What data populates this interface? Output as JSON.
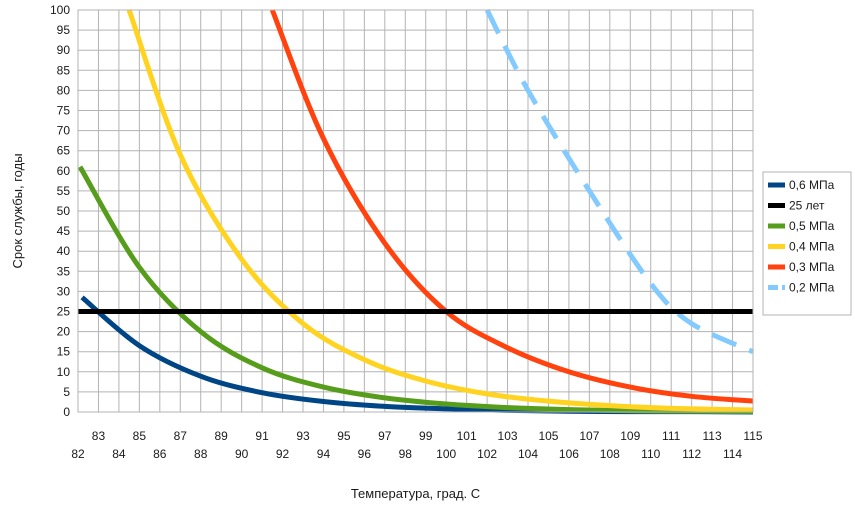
{
  "chart_data": {
    "type": "line",
    "title": "",
    "xlabel": "Температура, град. С",
    "ylabel": "Срок службы, годы",
    "xlim": [
      82,
      115
    ],
    "ylim": [
      0,
      100
    ],
    "y_ticks": [
      "0",
      "5",
      "10",
      "15",
      "20",
      "25",
      "30",
      "35",
      "40",
      "45",
      "50",
      "55",
      "60",
      "65",
      "70",
      "75",
      "80",
      "85",
      "90",
      "95",
      "100"
    ],
    "x_ticks_upper": [
      "83",
      "85",
      "87",
      "89",
      "91",
      "93",
      "95",
      "97",
      "99",
      "101",
      "103",
      "105",
      "107",
      "109",
      "111",
      "113",
      "115"
    ],
    "x_ticks_lower": [
      "82",
      "84",
      "86",
      "88",
      "90",
      "92",
      "94",
      "96",
      "98",
      "100",
      "102",
      "104",
      "106",
      "108",
      "110",
      "112",
      "114"
    ],
    "grid": true,
    "legend_position": "right",
    "series": [
      {
        "name": "0,6 МПа",
        "color": "#004586",
        "dashed": false,
        "points": [
          [
            82.2,
            28.5
          ],
          [
            85,
            16.5
          ],
          [
            88,
            8.9
          ],
          [
            91,
            4.8
          ],
          [
            94,
            2.6
          ],
          [
            97,
            1.4
          ],
          [
            100,
            0.8
          ],
          [
            103,
            0.4
          ],
          [
            106,
            0.2
          ],
          [
            109,
            0.1
          ],
          [
            112,
            0.1
          ],
          [
            115,
            0.0
          ]
        ]
      },
      {
        "name": "25 лет",
        "color": "#000000",
        "dashed": false,
        "points": [
          [
            82,
            25
          ],
          [
            115,
            25
          ]
        ]
      },
      {
        "name": "0,5 МПа",
        "color": "#579d1c",
        "dashed": false,
        "points": [
          [
            82.1,
            61
          ],
          [
            85,
            36
          ],
          [
            88,
            20
          ],
          [
            91,
            11
          ],
          [
            94,
            6.2
          ],
          [
            97,
            3.5
          ],
          [
            100,
            2.0
          ],
          [
            103,
            1.1
          ],
          [
            106,
            0.6
          ],
          [
            109,
            0.3
          ],
          [
            112,
            0.2
          ],
          [
            115,
            0.1
          ]
        ]
      },
      {
        "name": "0,4 МПа",
        "color": "#ffd320",
        "dashed": false,
        "points": [
          [
            84.5,
            100
          ],
          [
            87,
            64
          ],
          [
            90,
            38
          ],
          [
            93,
            22
          ],
          [
            96,
            13
          ],
          [
            99,
            7.7
          ],
          [
            102,
            4.5
          ],
          [
            105,
            2.7
          ],
          [
            108,
            1.6
          ],
          [
            111,
            0.9
          ],
          [
            115,
            0.5
          ]
        ]
      },
      {
        "name": "0,3 МПа",
        "color": "#ff420e",
        "dashed": false,
        "points": [
          [
            91.5,
            100
          ],
          [
            94,
            68
          ],
          [
            97,
            42
          ],
          [
            100,
            25
          ],
          [
            103,
            16
          ],
          [
            106,
            10
          ],
          [
            109,
            6.2
          ],
          [
            112,
            3.9
          ],
          [
            115,
            2.7
          ]
        ]
      },
      {
        "name": "0,2 МПа",
        "color": "#83caff",
        "dashed": true,
        "points": [
          [
            102,
            100
          ],
          [
            104,
            80
          ],
          [
            107,
            55
          ],
          [
            110,
            32
          ],
          [
            112,
            22
          ],
          [
            115,
            15
          ]
        ]
      }
    ]
  }
}
